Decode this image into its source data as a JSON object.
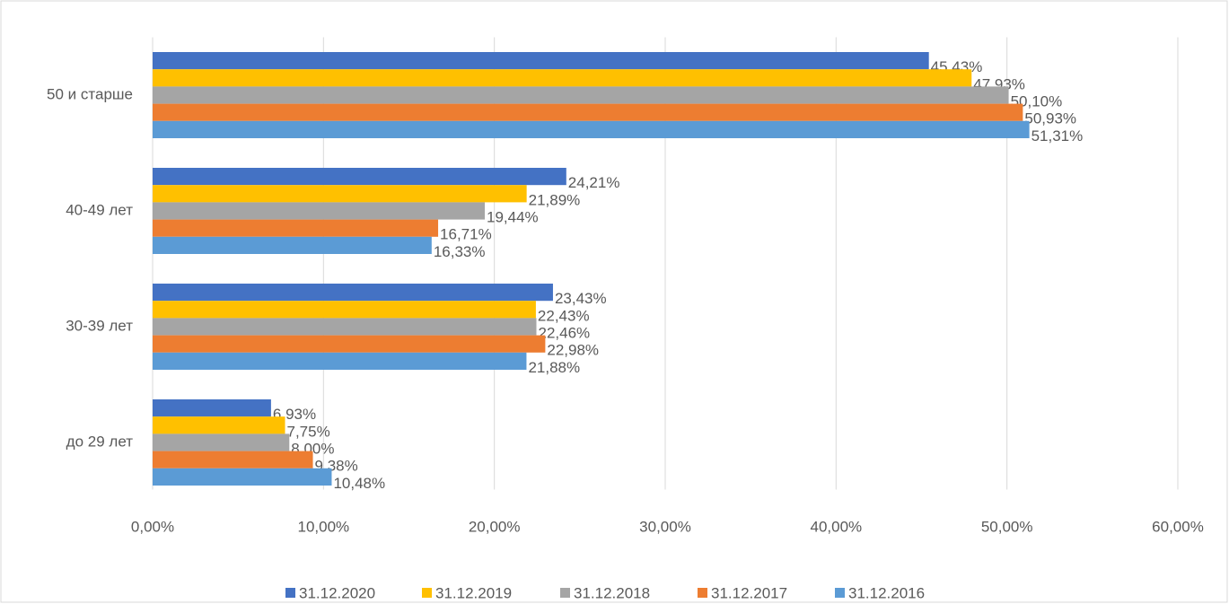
{
  "chart_data": {
    "type": "hbar",
    "categories": [
      "50 и старше",
      "40-49 лет",
      "30-39 лет",
      "до 29 лет"
    ],
    "series": [
      {
        "name": "31.12.2020",
        "color": "#4472c4",
        "values": [
          45.43,
          24.21,
          23.43,
          6.93
        ],
        "value_labels": [
          "45,43%",
          "24,21%",
          "23,43%",
          "6,93%"
        ]
      },
      {
        "name": "31.12.2019",
        "color": "#ffc000",
        "values": [
          47.93,
          21.89,
          22.43,
          7.75
        ],
        "value_labels": [
          "47,93%",
          "21,89%",
          "22,43%",
          "7,75%"
        ]
      },
      {
        "name": "31.12.2018",
        "color": "#a5a5a5",
        "values": [
          50.1,
          19.44,
          22.46,
          8.0
        ],
        "value_labels": [
          "50,10%",
          "19,44%",
          "22,46%",
          "8,00%"
        ]
      },
      {
        "name": "31.12.2017",
        "color": "#ed7d31",
        "values": [
          50.93,
          16.71,
          22.98,
          9.38
        ],
        "value_labels": [
          "50,93%",
          "16,71%",
          "22,98%",
          "9,38%"
        ]
      },
      {
        "name": "31.12.2016",
        "color": "#5b9bd5",
        "values": [
          51.31,
          16.33,
          21.88,
          10.48
        ],
        "value_labels": [
          "51,31%",
          "16,33%",
          "21,88%",
          "10,48%"
        ]
      }
    ],
    "xlim": [
      0,
      60
    ],
    "xticks": [
      {
        "value": 0,
        "label": "0,00%"
      },
      {
        "value": 10,
        "label": "10,00%"
      },
      {
        "value": 20,
        "label": "20,00%"
      },
      {
        "value": 30,
        "label": "30,00%"
      },
      {
        "value": 40,
        "label": "40,00%"
      },
      {
        "value": 50,
        "label": "50,00%"
      },
      {
        "value": 60,
        "label": "60,00%"
      }
    ],
    "grid": true,
    "legend": "bottom"
  }
}
